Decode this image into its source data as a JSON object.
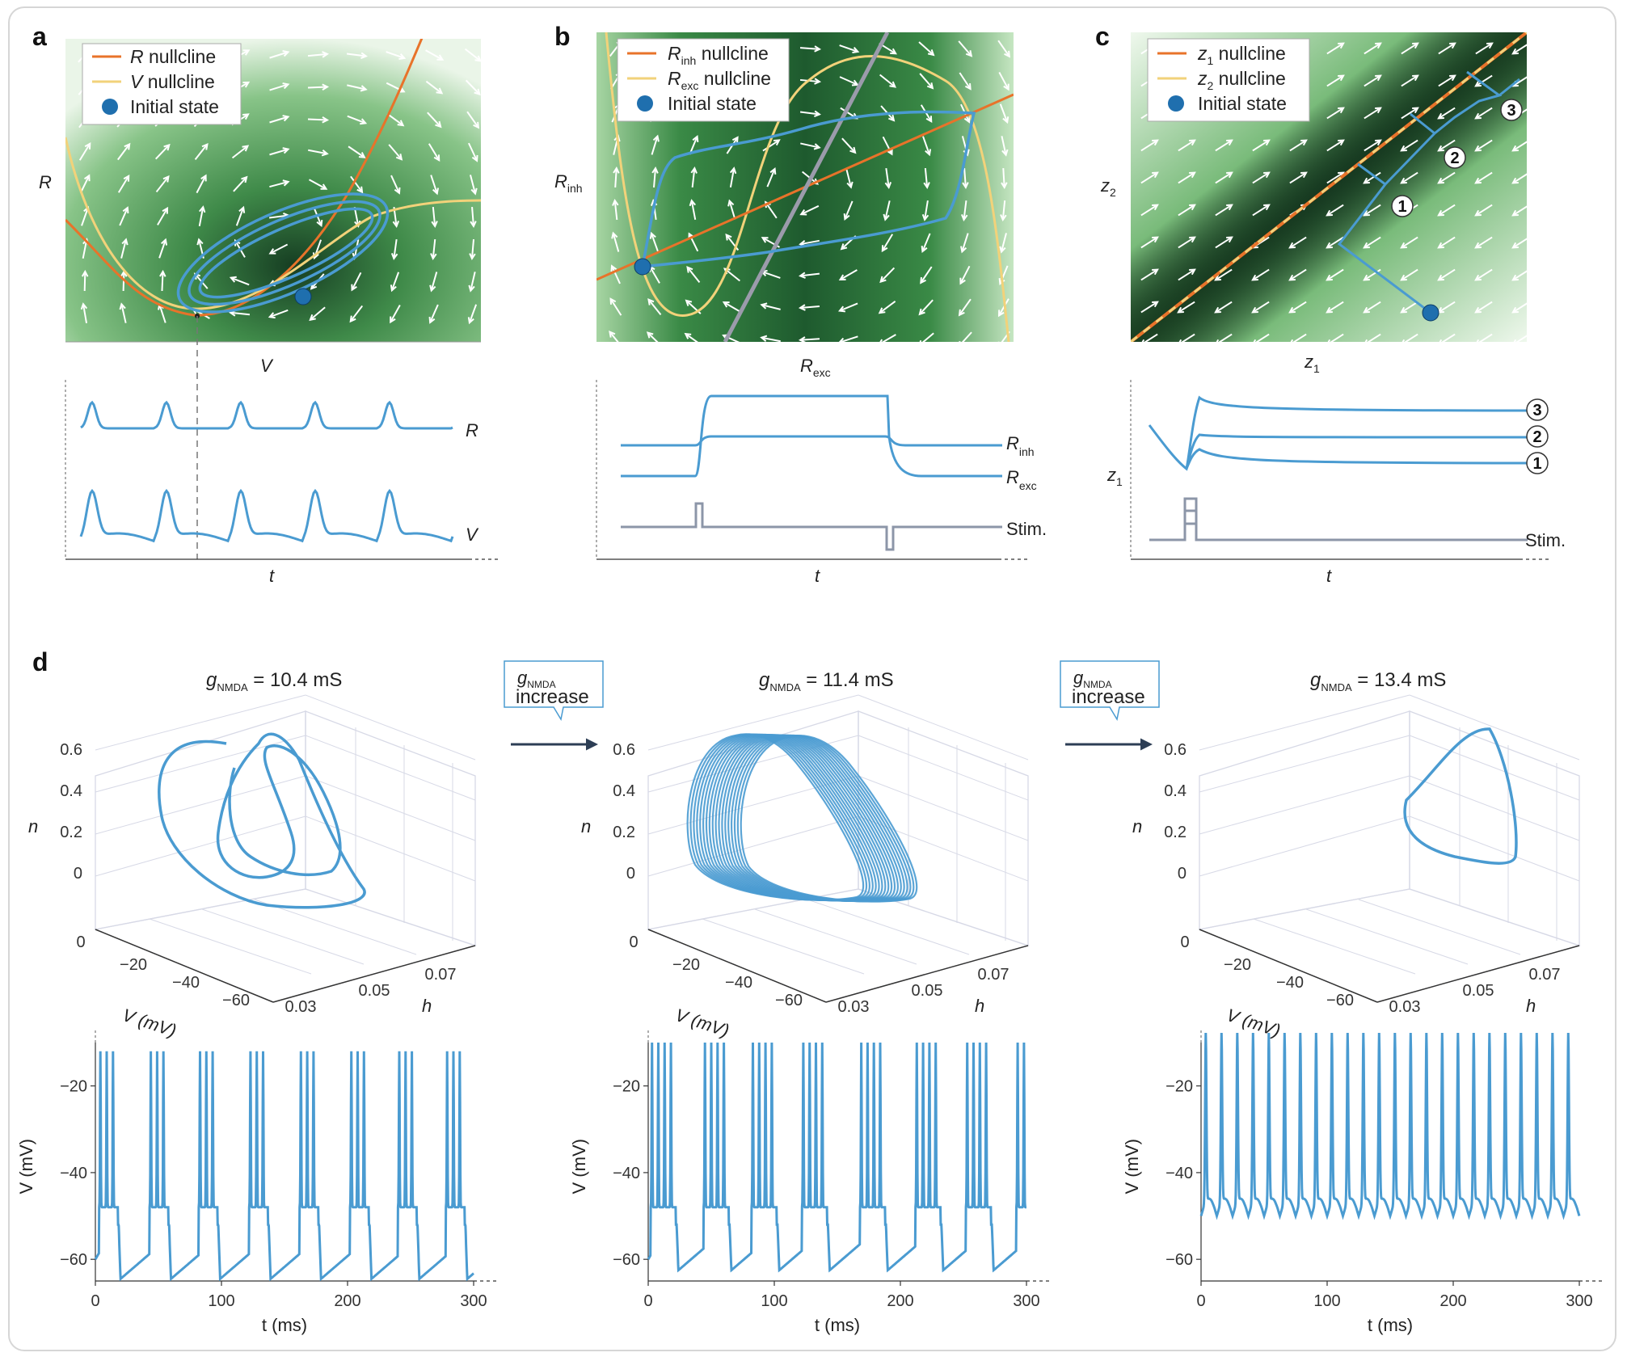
{
  "panels": {
    "a": {
      "label": "a",
      "legend": [
        {
          "var": "R",
          "sub": "",
          "text": " nullcline",
          "color": "#e8732a"
        },
        {
          "var": "V",
          "sub": "",
          "text": " nullcline",
          "color": "#f2d27a"
        },
        {
          "var": "",
          "sub": "",
          "text": "Initial state",
          "color": "#1f6fae",
          "marker": true
        }
      ],
      "xlabel": "V",
      "ylabel": "R",
      "trace_labels": [
        "R",
        "V"
      ],
      "time_label": "t"
    },
    "b": {
      "label": "b",
      "legend": [
        {
          "var": "R",
          "sub": "inh",
          "text": " nullcline",
          "color": "#e8732a"
        },
        {
          "var": "R",
          "sub": "exc",
          "text": " nullcline",
          "color": "#f2d27a"
        },
        {
          "var": "",
          "sub": "",
          "text": "Initial state",
          "color": "#1f6fae",
          "marker": true
        }
      ],
      "xlabel": "R",
      "xlabel_sub": "exc",
      "ylabel": "R",
      "ylabel_sub": "inh",
      "trace_labels": [
        {
          "var": "R",
          "sub": "inh"
        },
        {
          "var": "R",
          "sub": "exc"
        },
        {
          "var": "",
          "sub": "",
          "text": "Stim."
        }
      ],
      "time_label": "t"
    },
    "c": {
      "label": "c",
      "legend": [
        {
          "var": "z",
          "sub": "1",
          "text": " nullcline",
          "color": "#e8732a"
        },
        {
          "var": "z",
          "sub": "2",
          "text": " nullcline",
          "color": "#f2d27a"
        },
        {
          "var": "",
          "sub": "",
          "text": "Initial state",
          "color": "#1f6fae",
          "marker": true
        }
      ],
      "xlabel": "z",
      "xlabel_sub": "1",
      "ylabel": "z",
      "ylabel_sub": "2",
      "steps": [
        "1",
        "2",
        "3"
      ],
      "trace_ylabel": "z",
      "trace_ylabel_sub": "1",
      "stim_label": "Stim.",
      "time_label": "t"
    },
    "d": {
      "label": "d",
      "arrow_box": {
        "var": "g",
        "sub": "NMDA",
        "text": "increase"
      },
      "sub_panels": [
        {
          "g_sub": "NMDA",
          "title": " = 10.4 mS"
        },
        {
          "g_sub": "NMDA",
          "title": " = 11.4 mS"
        },
        {
          "g_sub": "NMDA",
          "title": " = 13.4 mS"
        }
      ],
      "axes3d": {
        "n_label": "n",
        "n_ticks": [
          "0.6",
          "0.4",
          "0.2",
          "0"
        ],
        "v_label": "V (mV)",
        "v_ticks": [
          "0",
          "−20",
          "−40",
          "−60"
        ],
        "h_label": "h",
        "h_ticks": [
          "0.03",
          "0.05",
          "0.07"
        ]
      },
      "ts_axes": {
        "ylabel": "V (mV)",
        "xlabel": "t (ms)",
        "yticks": [
          "−20",
          "−40",
          "−60"
        ],
        "xticks": [
          "0",
          "100",
          "200",
          "300"
        ]
      }
    }
  },
  "colors": {
    "trace": "#4a9bd1",
    "stim": "#8c96a8",
    "orange": "#e8732a",
    "yellow": "#f2d27a",
    "marker": "#1f6fae",
    "gray": "#9b9bab"
  },
  "chart_data": [
    {
      "type": "line",
      "panel": "d-1",
      "title": "gNMDA = 10.4 mS",
      "xlabel": "t (ms)",
      "ylabel": "V (mV)",
      "xlim": [
        0,
        300
      ],
      "ylim": [
        -65,
        -10
      ],
      "bursts": {
        "starts_ms": [
          3,
          43,
          82,
          122,
          162,
          202,
          240,
          278
        ],
        "spikes_per_burst": 3,
        "peak_mv": -12,
        "trough_mv": -65
      }
    },
    {
      "type": "line",
      "panel": "d-2",
      "title": "gNMDA = 11.4 mS",
      "xlabel": "t (ms)",
      "ylabel": "V (mV)",
      "xlim": [
        0,
        300
      ],
      "ylim": [
        -65,
        -10
      ],
      "bursts": {
        "starts_ms": [
          2,
          44,
          82,
          122,
          168,
          212,
          252,
          292
        ],
        "spikes_per_burst": 4,
        "peak_mv": -10,
        "trough_mv": -63
      }
    },
    {
      "type": "line",
      "panel": "d-3",
      "title": "gNMDA = 13.4 mS",
      "xlabel": "t (ms)",
      "ylabel": "V (mV)",
      "xlim": [
        0,
        300
      ],
      "ylim": [
        -65,
        -10
      ],
      "tonic": {
        "period_ms": 12.5,
        "peak_mv": -11,
        "trough_mv": -50
      }
    }
  ]
}
